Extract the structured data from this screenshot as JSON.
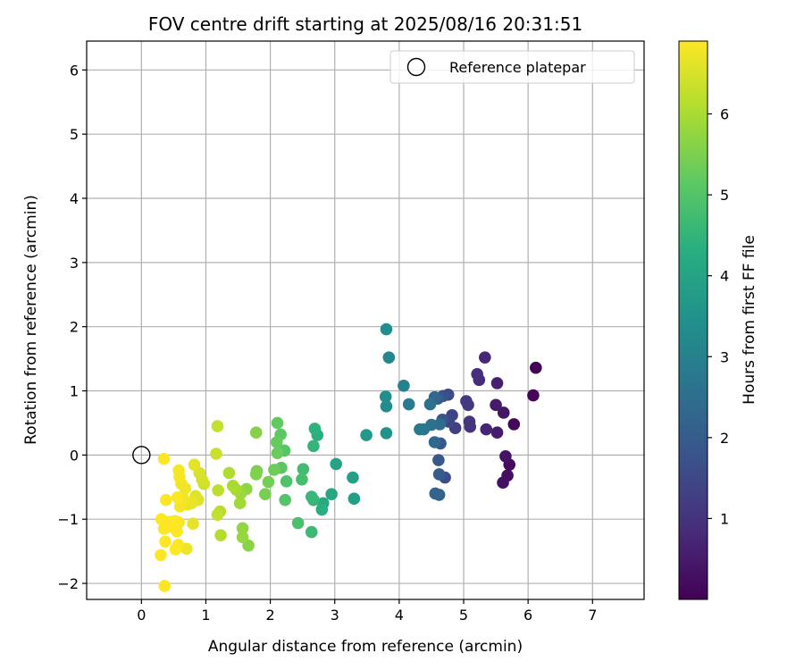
{
  "chart_data": {
    "type": "scatter",
    "title": "FOV centre drift starting at 2025/08/16 20:31:51",
    "xlabel": "Angular distance from reference (arcmin)",
    "ylabel": "Rotation from reference (arcmin)",
    "xlim": [
      -0.85,
      7.8
    ],
    "ylim": [
      -2.25,
      6.45
    ],
    "xticks": [
      0,
      1,
      2,
      3,
      4,
      5,
      6,
      7
    ],
    "yticks": [
      -2,
      -1,
      0,
      1,
      2,
      3,
      4,
      5,
      6
    ],
    "grid": true,
    "colormap": "viridis",
    "colorbar": {
      "label": "Hours from first FF file",
      "range": [
        0.0,
        6.9
      ],
      "ticks": [
        1,
        2,
        3,
        4,
        5,
        6
      ]
    },
    "reference": {
      "x": 0.0,
      "y": 0.0,
      "label": "Reference platepar",
      "marker": "open-circle",
      "edge_color": "#000000"
    },
    "legend_position": "top-right",
    "points": [
      {
        "x": 6.12,
        "y": 1.36,
        "t": 0.05
      },
      {
        "x": 6.08,
        "y": 0.93,
        "t": 0.1
      },
      {
        "x": 5.78,
        "y": 0.48,
        "t": 0.15
      },
      {
        "x": 5.71,
        "y": -0.15,
        "t": 0.2
      },
      {
        "x": 5.68,
        "y": -0.32,
        "t": 0.25
      },
      {
        "x": 5.61,
        "y": -0.43,
        "t": 0.3
      },
      {
        "x": 5.65,
        "y": -0.02,
        "t": 0.35
      },
      {
        "x": 5.62,
        "y": 0.66,
        "t": 0.4
      },
      {
        "x": 5.5,
        "y": 0.78,
        "t": 0.5
      },
      {
        "x": 5.52,
        "y": 0.35,
        "t": 0.55
      },
      {
        "x": 5.52,
        "y": 1.12,
        "t": 0.6
      },
      {
        "x": 5.35,
        "y": 0.4,
        "t": 0.7
      },
      {
        "x": 5.33,
        "y": 1.52,
        "t": 0.75
      },
      {
        "x": 5.24,
        "y": 1.17,
        "t": 0.85
      },
      {
        "x": 5.21,
        "y": 1.26,
        "t": 0.9
      },
      {
        "x": 5.1,
        "y": 0.44,
        "t": 1.0
      },
      {
        "x": 5.09,
        "y": 0.52,
        "t": 1.05
      },
      {
        "x": 5.07,
        "y": 0.78,
        "t": 1.15
      },
      {
        "x": 5.04,
        "y": 0.84,
        "t": 1.2
      },
      {
        "x": 4.87,
        "y": 0.42,
        "t": 1.3
      },
      {
        "x": 4.82,
        "y": 0.62,
        "t": 1.4
      },
      {
        "x": 4.77,
        "y": 0.52,
        "t": 1.45
      },
      {
        "x": 4.76,
        "y": 0.94,
        "t": 1.55
      },
      {
        "x": 4.71,
        "y": -0.35,
        "t": 1.6
      },
      {
        "x": 4.68,
        "y": 0.92,
        "t": 1.7
      },
      {
        "x": 4.67,
        "y": 0.55,
        "t": 1.75
      },
      {
        "x": 4.64,
        "y": 0.18,
        "t": 1.85
      },
      {
        "x": 4.61,
        "y": -0.08,
        "t": 1.9
      },
      {
        "x": 4.62,
        "y": -0.3,
        "t": 2.0
      },
      {
        "x": 4.6,
        "y": 0.88,
        "t": 2.05
      },
      {
        "x": 4.62,
        "y": -0.62,
        "t": 2.1
      },
      {
        "x": 4.56,
        "y": -0.6,
        "t": 2.2
      },
      {
        "x": 4.55,
        "y": 0.9,
        "t": 2.3
      },
      {
        "x": 4.55,
        "y": 0.2,
        "t": 2.35
      },
      {
        "x": 4.63,
        "y": 0.48,
        "t": 2.45
      },
      {
        "x": 4.5,
        "y": 0.47,
        "t": 2.55
      },
      {
        "x": 4.48,
        "y": 0.79,
        "t": 2.6
      },
      {
        "x": 4.38,
        "y": 0.4,
        "t": 2.7
      },
      {
        "x": 4.32,
        "y": 0.4,
        "t": 2.75
      },
      {
        "x": 4.15,
        "y": 0.79,
        "t": 2.85
      },
      {
        "x": 4.07,
        "y": 1.08,
        "t": 3.0
      },
      {
        "x": 3.84,
        "y": 1.52,
        "t": 3.15
      },
      {
        "x": 3.8,
        "y": 1.96,
        "t": 3.3
      },
      {
        "x": 3.8,
        "y": 0.76,
        "t": 3.35
      },
      {
        "x": 3.79,
        "y": 0.91,
        "t": 3.4
      },
      {
        "x": 3.8,
        "y": 0.34,
        "t": 3.5
      },
      {
        "x": 3.49,
        "y": 0.31,
        "t": 3.7
      },
      {
        "x": 3.3,
        "y": -0.68,
        "t": 3.85
      },
      {
        "x": 3.28,
        "y": -0.35,
        "t": 3.9
      },
      {
        "x": 3.02,
        "y": -0.14,
        "t": 4.0
      },
      {
        "x": 2.95,
        "y": -0.61,
        "t": 4.1
      },
      {
        "x": 2.82,
        "y": -0.75,
        "t": 4.2
      },
      {
        "x": 2.8,
        "y": -0.85,
        "t": 4.3
      },
      {
        "x": 2.73,
        "y": 0.31,
        "t": 4.35
      },
      {
        "x": 2.69,
        "y": 0.41,
        "t": 4.4
      },
      {
        "x": 2.67,
        "y": 0.14,
        "t": 4.5
      },
      {
        "x": 2.67,
        "y": -0.7,
        "t": 4.55
      },
      {
        "x": 2.64,
        "y": -0.65,
        "t": 4.6
      },
      {
        "x": 2.64,
        "y": -1.2,
        "t": 4.65
      },
      {
        "x": 2.51,
        "y": -0.22,
        "t": 4.75
      },
      {
        "x": 2.49,
        "y": -0.38,
        "t": 4.8
      },
      {
        "x": 2.43,
        "y": -1.06,
        "t": 4.85
      },
      {
        "x": 2.25,
        "y": -0.41,
        "t": 4.95
      },
      {
        "x": 2.23,
        "y": -0.7,
        "t": 5.0
      },
      {
        "x": 2.22,
        "y": 0.07,
        "t": 5.05
      },
      {
        "x": 2.17,
        "y": -0.2,
        "t": 5.1
      },
      {
        "x": 2.16,
        "y": 0.32,
        "t": 5.15
      },
      {
        "x": 2.11,
        "y": 0.5,
        "t": 5.2
      },
      {
        "x": 2.1,
        "y": 0.2,
        "t": 5.25
      },
      {
        "x": 2.11,
        "y": 0.03,
        "t": 5.3
      },
      {
        "x": 2.06,
        "y": -0.23,
        "t": 5.35
      },
      {
        "x": 1.97,
        "y": -0.42,
        "t": 5.4
      },
      {
        "x": 1.92,
        "y": -0.61,
        "t": 5.45
      },
      {
        "x": 1.79,
        "y": -0.25,
        "t": 5.5
      },
      {
        "x": 1.78,
        "y": -0.3,
        "t": 5.55
      },
      {
        "x": 1.78,
        "y": 0.35,
        "t": 5.6
      },
      {
        "x": 1.66,
        "y": -1.41,
        "t": 5.65
      },
      {
        "x": 1.63,
        "y": -0.53,
        "t": 5.7
      },
      {
        "x": 1.57,
        "y": -1.14,
        "t": 5.75
      },
      {
        "x": 1.57,
        "y": -1.28,
        "t": 5.8
      },
      {
        "x": 1.54,
        "y": -0.6,
        "t": 5.85
      },
      {
        "x": 1.53,
        "y": -0.75,
        "t": 5.9
      },
      {
        "x": 1.47,
        "y": -0.54,
        "t": 5.95
      },
      {
        "x": 1.42,
        "y": -0.48,
        "t": 6.0
      },
      {
        "x": 1.36,
        "y": -0.28,
        "t": 6.05
      },
      {
        "x": 1.23,
        "y": -1.25,
        "t": 6.1
      },
      {
        "x": 1.22,
        "y": -0.88,
        "t": 6.15
      },
      {
        "x": 1.19,
        "y": -0.55,
        "t": 6.2
      },
      {
        "x": 1.18,
        "y": -0.93,
        "t": 6.25
      },
      {
        "x": 1.18,
        "y": 0.45,
        "t": 6.3
      },
      {
        "x": 1.16,
        "y": 0.02,
        "t": 6.35
      },
      {
        "x": 0.97,
        "y": -0.45,
        "t": 6.4
      },
      {
        "x": 0.94,
        "y": -0.38,
        "t": 6.45
      },
      {
        "x": 0.9,
        "y": -0.28,
        "t": 6.5
      },
      {
        "x": 0.88,
        "y": -0.7,
        "t": 6.55
      },
      {
        "x": 0.84,
        "y": -0.64,
        "t": 6.6
      },
      {
        "x": 0.82,
        "y": -0.15,
        "t": 6.62
      },
      {
        "x": 0.8,
        "y": -1.07,
        "t": 6.65
      },
      {
        "x": 0.78,
        "y": -0.75,
        "t": 6.68
      },
      {
        "x": 0.72,
        "y": -0.77,
        "t": 6.7
      },
      {
        "x": 0.7,
        "y": -1.46,
        "t": 6.72
      },
      {
        "x": 0.68,
        "y": -0.52,
        "t": 6.74
      },
      {
        "x": 0.65,
        "y": -0.68,
        "t": 6.76
      },
      {
        "x": 0.62,
        "y": -0.45,
        "t": 6.78
      },
      {
        "x": 0.6,
        "y": -0.8,
        "t": 6.8
      },
      {
        "x": 0.59,
        "y": -0.34,
        "t": 6.82
      },
      {
        "x": 0.58,
        "y": -0.24,
        "t": 6.84
      },
      {
        "x": 0.58,
        "y": -1.05,
        "t": 6.85
      },
      {
        "x": 0.57,
        "y": -1.4,
        "t": 6.86
      },
      {
        "x": 0.56,
        "y": -0.66,
        "t": 6.87
      },
      {
        "x": 0.55,
        "y": -1.19,
        "t": 6.88
      },
      {
        "x": 0.53,
        "y": -1.47,
        "t": 6.89
      },
      {
        "x": 0.52,
        "y": -1.03,
        "t": 6.9
      },
      {
        "x": 0.5,
        "y": -1.12,
        "t": 6.9
      },
      {
        "x": 0.45,
        "y": -1.04,
        "t": 6.9
      },
      {
        "x": 0.41,
        "y": -1.12,
        "t": 6.9
      },
      {
        "x": 0.38,
        "y": -0.7,
        "t": 6.9
      },
      {
        "x": 0.37,
        "y": -1.35,
        "t": 6.9
      },
      {
        "x": 0.35,
        "y": -1.15,
        "t": 6.9
      },
      {
        "x": 0.36,
        "y": -2.04,
        "t": 6.9
      },
      {
        "x": 0.35,
        "y": -0.06,
        "t": 6.9
      },
      {
        "x": 0.31,
        "y": -1.0,
        "t": 6.9
      },
      {
        "x": 0.3,
        "y": -1.56,
        "t": 6.9
      }
    ]
  }
}
